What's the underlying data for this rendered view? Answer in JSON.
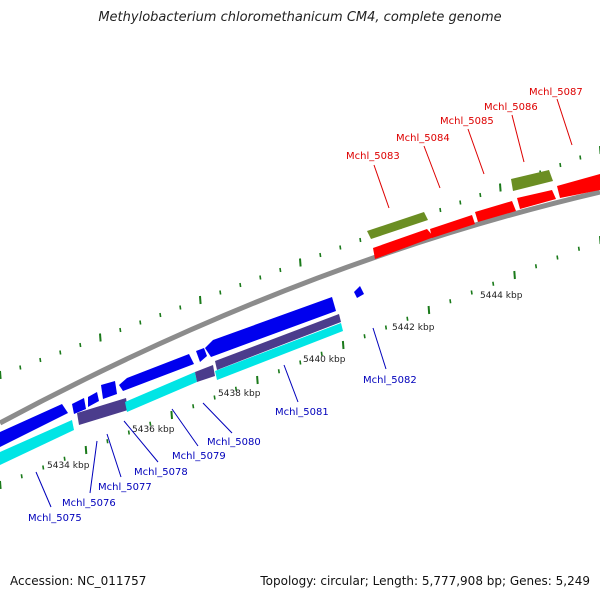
{
  "title": "Methylobacterium chloromethanicum CM4, complete genome",
  "footer": {
    "accession": "Accession: NC_011757",
    "summary": "Topology: circular; Length: 5,777,908 bp; Genes: 5,249"
  },
  "colors": {
    "forward_gene": "#ff0000",
    "reverse_gene": "#0000ee",
    "forward_feature": "#6b8e23",
    "reverse_cyan": "#00e5e5",
    "reverse_dark": "#4b3c8c",
    "backbone": "#8c8c8c",
    "tick": "#1a7a1a",
    "fwd_label": "#dd0000",
    "rev_label": "#0000bb"
  },
  "scale_labels": [
    "5434 kbp",
    "5436 kbp",
    "5438 kbp",
    "5440 kbp",
    "5442 kbp",
    "5444 kbp"
  ],
  "forward_labels": [
    "Mchl_5083",
    "Mchl_5084",
    "Mchl_5085",
    "Mchl_5086",
    "Mchl_5087"
  ],
  "reverse_labels": [
    "Mchl_5075",
    "Mchl_5076",
    "Mchl_5077",
    "Mchl_5078",
    "Mchl_5079",
    "Mchl_5080",
    "Mchl_5081",
    "Mchl_5082"
  ]
}
